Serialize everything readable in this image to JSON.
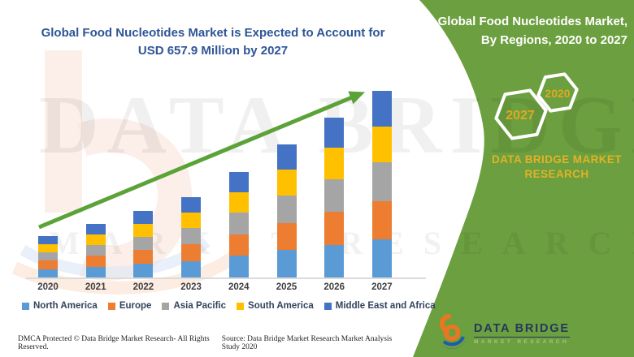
{
  "header": {
    "left_title": "Global Food Nucleotides Market is Expected to Account for USD 657.9 Million by 2027",
    "right_title": "Global Food Nucleotides Market, By Regions, 2020 to 2027"
  },
  "side_panel": {
    "panel_color": "#6C9F3F",
    "hexagon_front_label": "2027",
    "hexagon_back_label": "2020",
    "hexagon_text_color": "#DFA922",
    "brand_text": "DATA BRIDGE MARKET RESEARCH"
  },
  "chart_data": {
    "type": "bar",
    "stacked": true,
    "title": "Global Food Nucleotides Market, By Regions, 2020 to 2027",
    "unit": "USD Million",
    "values_estimated": true,
    "y_axis_visible": false,
    "grid": false,
    "legend_position": "bottom",
    "ylim": [
      0,
      700
    ],
    "categories": [
      "2020",
      "2021",
      "2022",
      "2023",
      "2024",
      "2025",
      "2026",
      "2027"
    ],
    "totals": [
      145.0,
      188.9,
      234.1,
      283.0,
      371.1,
      468.9,
      563.0,
      657.9
    ],
    "series": [
      {
        "name": "North America",
        "color": "#5B9BD5",
        "values": [
          29.7,
          38.7,
          48.0,
          58.0,
          76.1,
          96.1,
          115.4,
          134.9
        ]
      },
      {
        "name": "Europe",
        "color": "#ED7D31",
        "values": [
          29.7,
          38.7,
          48.0,
          58.0,
          76.1,
          96.1,
          115.4,
          134.9
        ]
      },
      {
        "name": "Asia Pacific",
        "color": "#A5A5A5",
        "values": [
          29.7,
          38.7,
          48.0,
          58.0,
          76.1,
          96.1,
          115.4,
          134.9
        ]
      },
      {
        "name": "South America",
        "color": "#FFC000",
        "values": [
          28.3,
          36.9,
          45.6,
          55.2,
          72.3,
          91.5,
          109.8,
          128.3
        ]
      },
      {
        "name": "Middle East and Africa",
        "color": "#4472C4",
        "values": [
          27.6,
          35.9,
          44.5,
          53.8,
          70.5,
          89.1,
          107.0,
          125.0
        ]
      }
    ],
    "annotations": [
      "upward trend arrow across bars"
    ],
    "trend_arrow_color": "#5BA238"
  },
  "watermark": {
    "line1": "DATA BRIDGE",
    "line2": "MARKET RESEARCH"
  },
  "footer": {
    "dmca": "DMCA Protected © Data Bridge Market Research- All Rights Reserved.",
    "source": "Source: Data Bridge Market Research Market Analysis Study 2020",
    "logo_title": "DATA BRIDGE",
    "logo_subtitle": "MARKET RESEARCH"
  }
}
